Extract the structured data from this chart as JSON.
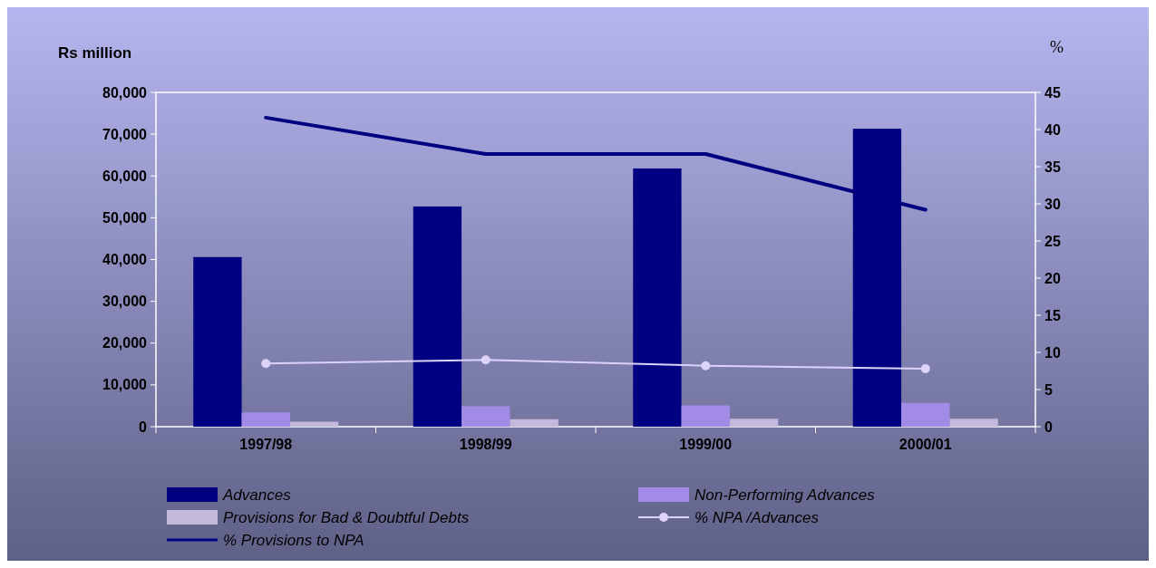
{
  "chart_data": {
    "type": "bar",
    "categories": [
      "1997/98",
      "1998/99",
      "1999/00",
      "2000/01"
    ],
    "ylabel": "Rs million",
    "y2label": "%",
    "series": [
      {
        "name": "Advances",
        "color": "#000080",
        "values": [
          40600,
          52700,
          61800,
          71300
        ]
      },
      {
        "name": "Non-Performing Advances",
        "color": "#a28be6",
        "values": [
          3400,
          4900,
          5100,
          5700
        ]
      },
      {
        "name": "Provisions for Bad & Doubtful Debts",
        "color": "#c4b8dc",
        "values": [
          1200,
          1800,
          1900,
          1900
        ]
      },
      {
        "name": "% NPA /Advances",
        "type": "line",
        "axis": "y2",
        "marker": "circle",
        "color": "#ddd2fa",
        "values": [
          8.5,
          9.0,
          8.2,
          7.8
        ]
      },
      {
        "name": "% Provisions to NPA",
        "type": "line",
        "axis": "y2",
        "marker": "none",
        "color": "#000080",
        "values": [
          41.6,
          36.7,
          36.7,
          29.2
        ]
      }
    ],
    "ylim": [
      0,
      80000
    ],
    "yticks": [
      0,
      {
        "value": 10000,
        "label": "10,000"
      },
      {
        "value": 20000,
        "label": "20,000"
      },
      {
        "value": 30000,
        "label": "30,000"
      },
      {
        "value": 40000,
        "label": "40,000"
      },
      {
        "value": 50000,
        "label": "50,000"
      },
      {
        "value": 60000,
        "label": "60,000"
      },
      {
        "value": 70000,
        "label": "70,000"
      },
      {
        "value": 80000,
        "label": "80,000"
      }
    ],
    "y2lim": [
      0,
      45
    ],
    "y2ticks": [
      0,
      5,
      10,
      15,
      20,
      25,
      30,
      35,
      40,
      45
    ],
    "legend": "bottom",
    "grid": false
  }
}
